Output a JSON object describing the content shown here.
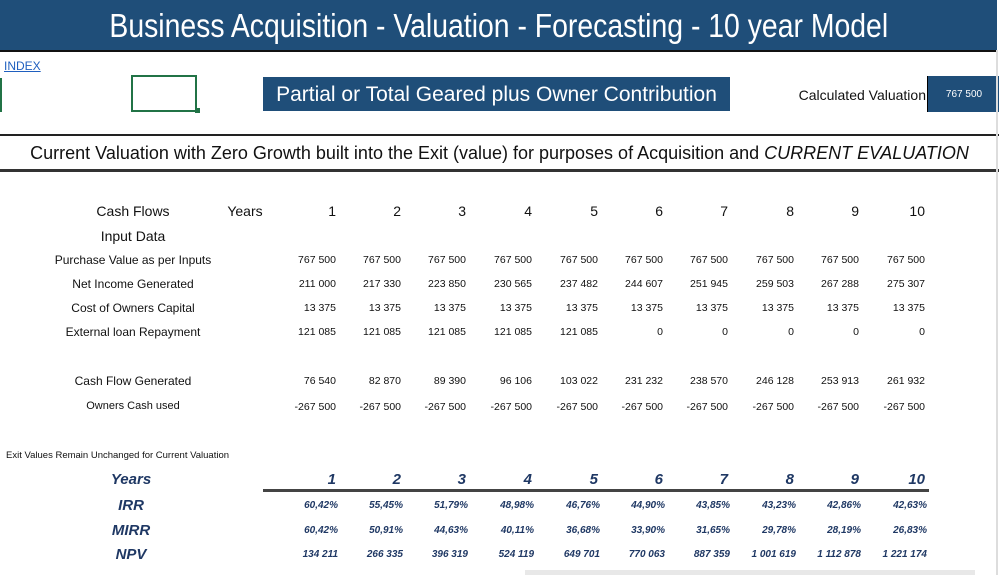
{
  "header": {
    "title": "Business Acquisition - Valuation - Forecasting - 10 year Model"
  },
  "index_link": "INDEX",
  "mode_label": "Partial or Total Geared plus Owner Contribution",
  "calculated_valuation": {
    "label": "Calculated Valuation",
    "value": "767 500"
  },
  "subtitle": {
    "main": "Current Valuation with Zero Growth built into the Exit (value) for purposes of Acquisition and ",
    "emphasis": "CURRENT EVALUATION"
  },
  "cashflow": {
    "title": "Cash Flows",
    "years_label": "Years",
    "input_label": "Input Data",
    "years": [
      "1",
      "2",
      "3",
      "4",
      "5",
      "6",
      "7",
      "8",
      "9",
      "10"
    ],
    "rows": [
      {
        "label": "Purchase Value as per Inputs",
        "values": [
          "767 500",
          "767 500",
          "767 500",
          "767 500",
          "767 500",
          "767 500",
          "767 500",
          "767 500",
          "767 500",
          "767 500"
        ]
      },
      {
        "label": "Net Income Generated",
        "values": [
          "211 000",
          "217 330",
          "223 850",
          "230 565",
          "237 482",
          "244 607",
          "251 945",
          "259 503",
          "267 288",
          "275 307"
        ]
      },
      {
        "label": "Cost of Owners Capital",
        "values": [
          "13 375",
          "13 375",
          "13 375",
          "13 375",
          "13 375",
          "13 375",
          "13 375",
          "13 375",
          "13 375",
          "13 375"
        ]
      },
      {
        "label": "External loan Repayment",
        "values": [
          "121 085",
          "121 085",
          "121 085",
          "121 085",
          "121 085",
          "0",
          "0",
          "0",
          "0",
          "0"
        ]
      },
      {
        "label": "Cash Flow Generated",
        "values": [
          "76 540",
          "82 870",
          "89 390",
          "96 106",
          "103 022",
          "231 232",
          "238 570",
          "246 128",
          "253 913",
          "261 932"
        ]
      },
      {
        "label": "Owners Cash used",
        "values": [
          "-267 500",
          "-267 500",
          "-267 500",
          "-267 500",
          "-267 500",
          "-267 500",
          "-267 500",
          "-267 500",
          "-267 500",
          "-267 500"
        ]
      }
    ]
  },
  "results": {
    "note": "Exit Values Remain Unchanged for Current Valuation",
    "years_label": "Years",
    "years": [
      "1",
      "2",
      "3",
      "4",
      "5",
      "6",
      "7",
      "8",
      "9",
      "10"
    ],
    "rows": [
      {
        "label": "IRR",
        "values": [
          "60,42%",
          "55,45%",
          "51,79%",
          "48,98%",
          "46,76%",
          "44,90%",
          "43,85%",
          "43,23%",
          "42,86%",
          "42,63%"
        ]
      },
      {
        "label": "MIRR",
        "values": [
          "60,42%",
          "50,91%",
          "44,63%",
          "40,11%",
          "36,68%",
          "33,90%",
          "31,65%",
          "29,78%",
          "28,19%",
          "26,83%"
        ]
      },
      {
        "label": "NPV",
        "values": [
          "134 211",
          "266 335",
          "396 319",
          "524 119",
          "649 701",
          "770 063",
          "887 359",
          "1 001 619",
          "1 112 878",
          "1 221 174"
        ]
      }
    ]
  },
  "colors": {
    "header_bg": "#1f4e79",
    "results_text": "#1f3864",
    "selection": "#217346"
  }
}
